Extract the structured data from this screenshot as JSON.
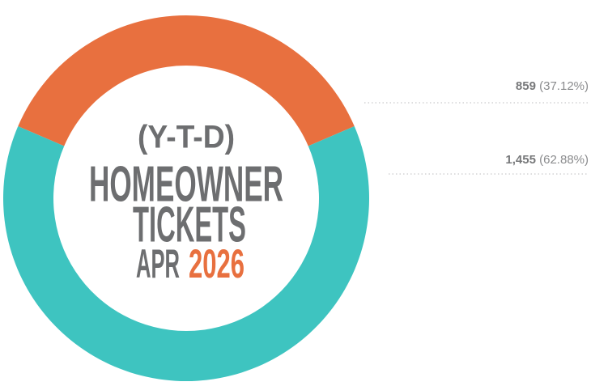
{
  "chart_data": {
    "type": "donut",
    "title_lines": [
      "(Y-T-D)",
      "HOMEOWNER",
      "TICKETS"
    ],
    "period": "APR",
    "year": "2026",
    "values": [
      859,
      1455
    ],
    "value_labels": [
      "859",
      "1,455"
    ],
    "percent_labels": [
      "(37.12%)",
      "(62.88%)"
    ],
    "colors": [
      "#e8703f",
      "#3ec4c0"
    ],
    "year_color": "#e8703f"
  }
}
